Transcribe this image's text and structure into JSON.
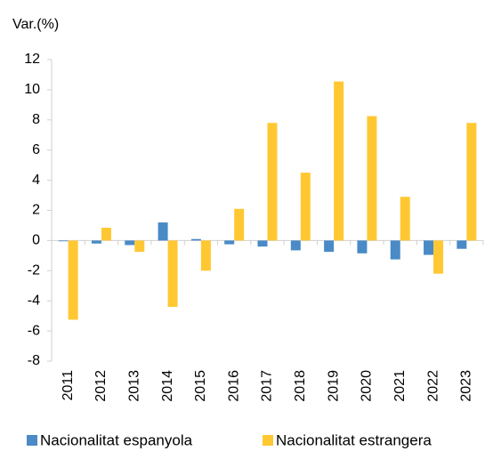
{
  "chart_data": {
    "type": "bar",
    "y_axis_label": "Var.(%)",
    "categories": [
      "2011",
      "2012",
      "2013",
      "2014",
      "2015",
      "2016",
      "2017",
      "2018",
      "2019",
      "2020",
      "2021",
      "2022",
      "2023"
    ],
    "series": [
      {
        "name": "Nacionalitat espanyola",
        "color": "#4a8ac6",
        "values": [
          -0.05,
          -0.2,
          -0.3,
          1.2,
          0.1,
          -0.25,
          -0.4,
          -0.65,
          -0.75,
          -0.85,
          -1.25,
          -0.95,
          -0.55
        ]
      },
      {
        "name": "Nacionalitat estrangera",
        "color": "#ffc832",
        "values": [
          -5.25,
          0.85,
          -0.75,
          -4.4,
          -2.0,
          2.1,
          7.8,
          4.5,
          10.55,
          8.25,
          2.9,
          -2.2,
          7.8
        ]
      }
    ],
    "ylim": [
      -8,
      12
    ],
    "yticks": [
      -8,
      -6,
      -4,
      -2,
      0,
      2,
      4,
      6,
      8,
      10,
      12
    ],
    "grid": false,
    "legend": "bottom"
  }
}
